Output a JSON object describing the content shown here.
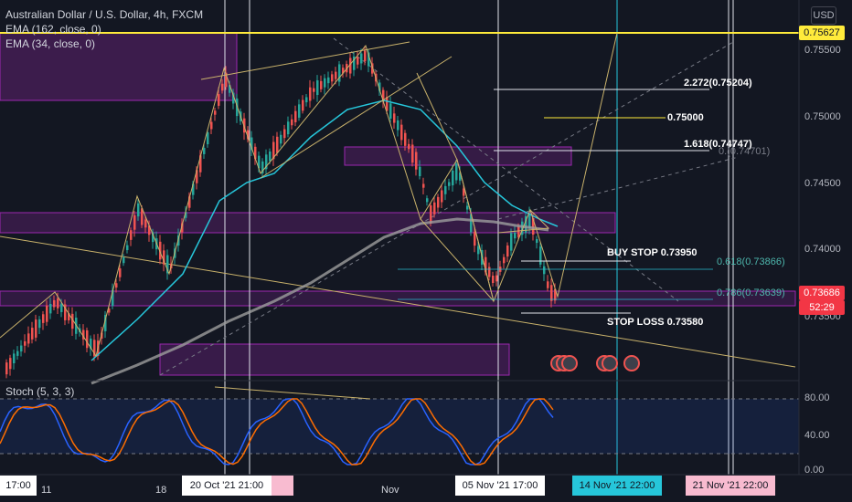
{
  "symbol": "Australian Dollar / U.S. Dollar, 4h, FXCM",
  "indicators": [
    "EMA (162, close, 0)",
    "EMA (34, close, 0)"
  ],
  "currency_button": "USD",
  "oscillator_label": "Stoch (5, 3, 3)",
  "price_axis": [
    "0.75500",
    "0.75000",
    "0.74500",
    "0.74000",
    "0.73500"
  ],
  "oscillator_axis": [
    "80.00",
    "40.00",
    "0.00"
  ],
  "top_price_tag": "0.75627",
  "current_price": "0.73686",
  "countdown": "52:29",
  "annotations": {
    "fib_2272": "2.272(0.75204)",
    "level_75000": "0.75000",
    "fib_1618": "1.618(0.74747)",
    "fib_1618_ghost": "0.(0.74701)",
    "buy_stop": "BUY STOP 0.73950",
    "fib_618": "0.618(0.73866)",
    "fib_786": "0.786(0.73639)",
    "stop_loss": "STOP LOSS 0.73580"
  },
  "time_axis": {
    "left_box": "17:00",
    "t11": "11",
    "t18": "18",
    "oct20": "20 Oct '21   21:00",
    "nov": "Nov",
    "nov5": "05 Nov '21   17:00",
    "nov14": "14 Nov '21   22:00",
    "nov21": "21 Nov '21   22:00"
  },
  "colors": {
    "background": "#131722",
    "up": "#26a69a",
    "down": "#ef5350",
    "yellow": "#ffeb3b",
    "purple": "#9c27b0"
  }
}
